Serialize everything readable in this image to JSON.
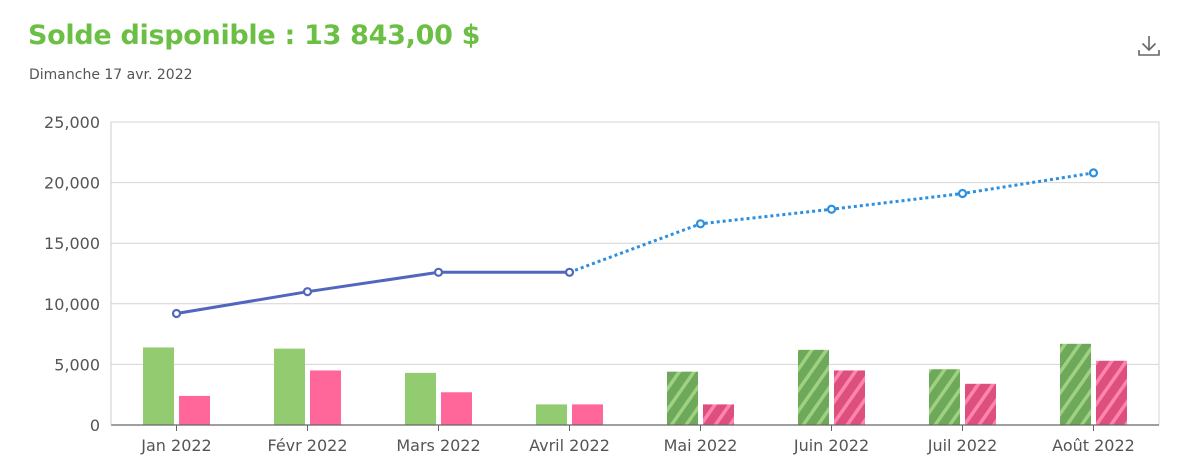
{
  "header": {
    "title": "Solde disponible : 13 843,00 $",
    "date": "Dimanche 17 avr. 2022",
    "download_icon": "download-icon"
  },
  "colors": {
    "title": "#6bbf45",
    "income_actual": "#93cb70",
    "income_forecast": "#6ea85a",
    "expense_actual": "#ff6699",
    "expense_forecast": "#dd4f7e",
    "balance_line": "#5166bd",
    "balance_forecast": "#2d8fe0"
  },
  "chart_data": {
    "type": "bar",
    "categories": [
      "Jan 2022",
      "Févr 2022",
      "Mars 2022",
      "Avril 2022",
      "Mai 2022",
      "Juin 2022",
      "Juil 2022",
      "Août 2022"
    ],
    "forecast_start_index": 4,
    "series": [
      {
        "type": "bar",
        "values": [
          6400,
          6300,
          4300,
          1700,
          4400,
          6200,
          4600,
          6700
        ]
      },
      {
        "type": "bar",
        "values": [
          2400,
          4500,
          2700,
          1700,
          1700,
          4500,
          3400,
          5300
        ]
      },
      {
        "type": "line",
        "values": [
          9200,
          11000,
          12600,
          12600,
          16600,
          17800,
          19100,
          20800
        ],
        "forecast_from_index": 3
      }
    ],
    "ylim": [
      0,
      25000
    ],
    "yticks": [
      0,
      5000,
      10000,
      15000,
      20000,
      25000
    ],
    "ytick_labels": [
      "0",
      "5,000",
      "10,000",
      "15,000",
      "20,000",
      "25,000"
    ],
    "grid": true,
    "xlabel": "",
    "ylabel": ""
  }
}
